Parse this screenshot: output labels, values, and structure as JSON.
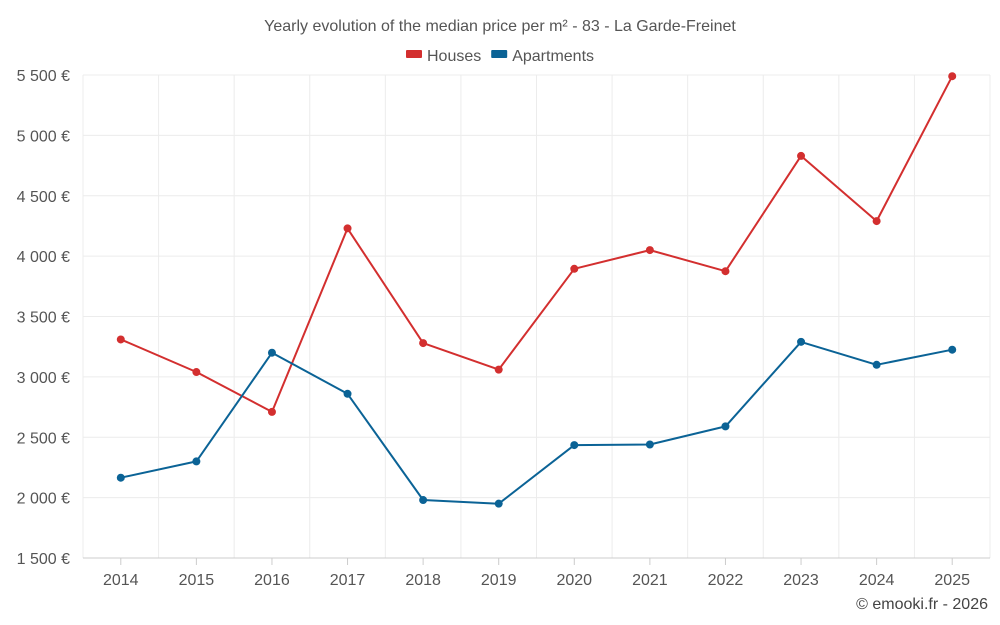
{
  "chart_data": {
    "type": "line",
    "title": "Yearly evolution of the median price per m² - 83 - La Garde-Freinet",
    "categories": [
      "2014",
      "2015",
      "2016",
      "2017",
      "2018",
      "2019",
      "2020",
      "2021",
      "2022",
      "2023",
      "2024",
      "2025"
    ],
    "series": [
      {
        "name": "Houses",
        "color": "#d32f2f",
        "values": [
          3310,
          3040,
          2710,
          4230,
          3280,
          3060,
          3895,
          4050,
          3875,
          4830,
          4290,
          5490
        ]
      },
      {
        "name": "Apartments",
        "color": "#0b6396",
        "values": [
          2165,
          2300,
          3200,
          2860,
          1980,
          1950,
          2435,
          2440,
          2590,
          3290,
          3100,
          3225
        ]
      }
    ],
    "y_ticks": [
      "1 500 €",
      "2 000 €",
      "2 500 €",
      "3 000 €",
      "3 500 €",
      "4 000 €",
      "4 500 €",
      "5 000 €",
      "5 500 €"
    ],
    "ylim": [
      1500,
      5500
    ],
    "grid": true,
    "legend_position": "top-center",
    "credit": "© emooki.fr - 2026"
  }
}
